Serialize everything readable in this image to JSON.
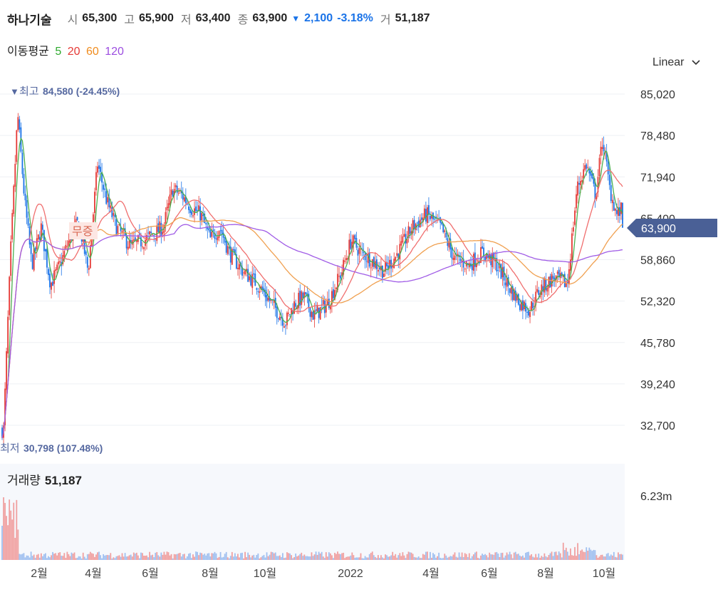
{
  "header": {
    "name": "하나기술",
    "open_label": "시",
    "open": "65,300",
    "high_label": "고",
    "high": "65,900",
    "low_label": "저",
    "low": "63,400",
    "close_label": "종",
    "close": "63,900",
    "change_arrow": "▼",
    "change": "2,100",
    "change_pct": "-3.18%",
    "volume_label": "거",
    "volume": "51,187"
  },
  "ma_legend": {
    "label": "이동평균",
    "periods": [
      {
        "text": "5",
        "color": "#2eaa2e"
      },
      {
        "text": "20",
        "color": "#e53935"
      },
      {
        "text": "60",
        "color": "#f08c1e"
      },
      {
        "text": "120",
        "color": "#9c4de0"
      }
    ]
  },
  "scale_select": {
    "label": "Linear",
    "icon": "chevron-down-icon"
  },
  "colors": {
    "up": "#e53935",
    "down": "#1a73e8",
    "ma5": "#4caf50",
    "ma20": "#f06e6e",
    "ma60": "#f0a050",
    "ma120": "#a05ce6",
    "current_tag": "#4a6096"
  },
  "annotations": {
    "high": {
      "marker": "▼",
      "label": "최고",
      "value": "84,580 (-24.45%)"
    },
    "low": {
      "label": "최저",
      "value": "30,798 (107.48%)"
    },
    "event_badge": "무증",
    "current_price": "63,900"
  },
  "volume_panel": {
    "label": "거래량",
    "value": "51,187",
    "axis_label": "6.23m"
  },
  "chart_data": {
    "type": "candlestick",
    "y_ticks": [
      "85,020",
      "78,480",
      "71,940",
      "65,400",
      "58,860",
      "52,320",
      "45,780",
      "39,240",
      "32,700"
    ],
    "ylim": [
      32700,
      85020
    ],
    "x_ticks": [
      "2월",
      "4월",
      "6월",
      "8월",
      "10월",
      "2022",
      "4월",
      "6월",
      "8월",
      "10월"
    ],
    "price_path": [
      [
        "2021-01",
        32000
      ],
      [
        "2021-01",
        60000
      ],
      [
        "2021-01",
        82000
      ],
      [
        "2021-01",
        68000
      ],
      [
        "2021-02",
        58000
      ],
      [
        "2021-02",
        64000
      ],
      [
        "2021-02",
        55000
      ],
      [
        "2021-03",
        58000
      ],
      [
        "2021-03",
        62000
      ],
      [
        "2021-03",
        65000
      ],
      [
        "2021-04",
        57000
      ],
      [
        "2021-04",
        74000
      ],
      [
        "2021-04",
        68000
      ],
      [
        "2021-05",
        64000
      ],
      [
        "2021-05",
        61000
      ],
      [
        "2021-06",
        62000
      ],
      [
        "2021-06",
        63000
      ],
      [
        "2021-06",
        64000
      ],
      [
        "2021-07",
        70000
      ],
      [
        "2021-07",
        69000
      ],
      [
        "2021-07",
        67000
      ],
      [
        "2021-08",
        66000
      ],
      [
        "2021-08",
        62000
      ],
      [
        "2021-08",
        64000
      ],
      [
        "2021-09",
        60000
      ],
      [
        "2021-09",
        57000
      ],
      [
        "2021-10",
        55000
      ],
      [
        "2021-10",
        52000
      ],
      [
        "2021-11",
        49000
      ],
      [
        "2021-11",
        52000
      ],
      [
        "2021-11",
        53000
      ],
      [
        "2021-12",
        50000
      ],
      [
        "2021-12",
        52000
      ],
      [
        "2022-01",
        57000
      ],
      [
        "2022-01",
        62000
      ],
      [
        "2022-01",
        60000
      ],
      [
        "2022-02",
        59000
      ],
      [
        "2022-02",
        57000
      ],
      [
        "2022-03",
        60000
      ],
      [
        "2022-03",
        64000
      ],
      [
        "2022-04",
        66000
      ],
      [
        "2022-04",
        64000
      ],
      [
        "2022-05",
        59000
      ],
      [
        "2022-05",
        58000
      ],
      [
        "2022-06",
        60000
      ],
      [
        "2022-06",
        58000
      ],
      [
        "2022-07",
        54000
      ],
      [
        "2022-07",
        52000
      ],
      [
        "2022-07",
        51000
      ],
      [
        "2022-08",
        54000
      ],
      [
        "2022-08",
        56000
      ],
      [
        "2022-09",
        55000
      ],
      [
        "2022-09",
        70000
      ],
      [
        "2022-09",
        74000
      ],
      [
        "2022-10",
        69000
      ],
      [
        "2022-10",
        78000
      ],
      [
        "2022-10",
        70000
      ],
      [
        "2022-10",
        66000
      ],
      [
        "2022-11",
        67000
      ],
      [
        "2022-11",
        65000
      ],
      [
        "2022-11",
        63900
      ]
    ]
  }
}
